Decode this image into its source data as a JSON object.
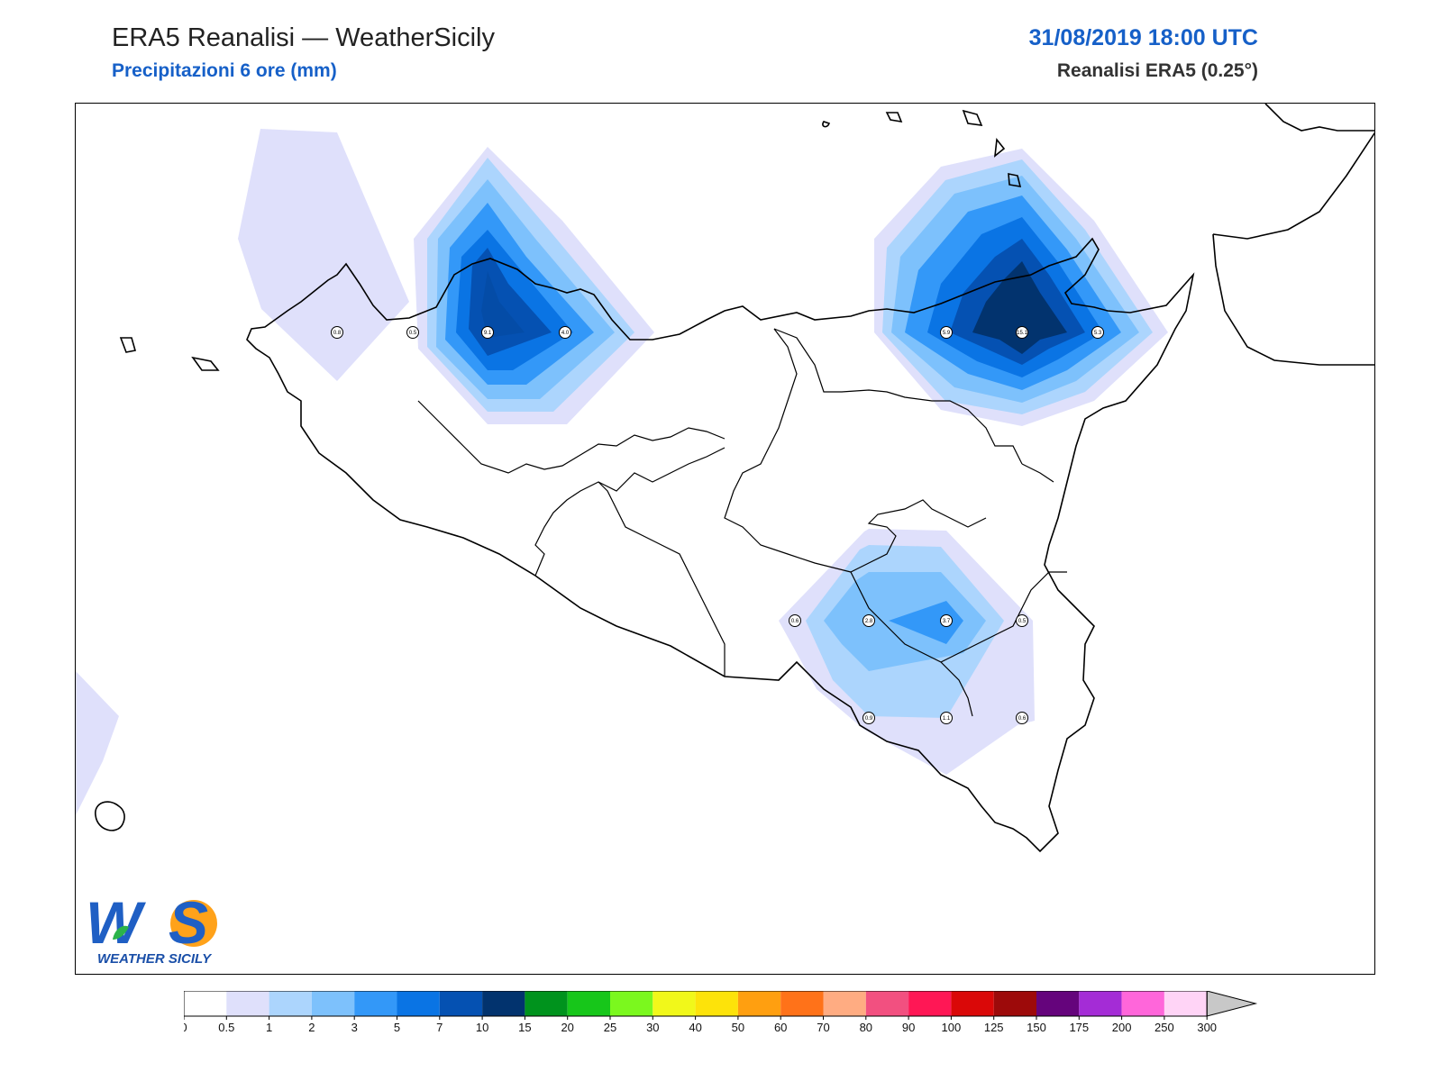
{
  "header": {
    "title": "ERA5 Reanalisi — WeatherSicily",
    "subtitle": "Precipitazioni 6 ore (mm)",
    "datetime": "31/08/2019 18:00 UTC",
    "model": "Reanalisi ERA5 (0.25°)"
  },
  "colors": {
    "title": "#222222",
    "accent_blue": "#1660c8",
    "coast": "#000000",
    "scale": [
      "#ffffff",
      "#dfe0fb",
      "#acd5fd",
      "#7dc1fc",
      "#3398f8",
      "#0a74e4",
      "#0551b2",
      "#02336e",
      "#00931d",
      "#17c61a",
      "#7bf81e",
      "#f1f81a",
      "#fde30a",
      "#ff9f10",
      "#ff7219",
      "#ffac82",
      "#f25080",
      "#ff1755",
      "#da0808",
      "#9d0a0a",
      "#65047c",
      "#a42cd6",
      "#ff66da",
      "#ffd4f6"
    ]
  },
  "legend": {
    "ticks": [
      "0",
      "0.5",
      "1",
      "2",
      "3",
      "5",
      "7",
      "10",
      "15",
      "20",
      "25",
      "30",
      "40",
      "50",
      "60",
      "70",
      "80",
      "90",
      "100",
      "125",
      "150",
      "175",
      "200",
      "250",
      "300"
    ],
    "extend_max_color": "#c8c8c8"
  },
  "grid_points": [
    {
      "id": "p1",
      "value": "0.8"
    },
    {
      "id": "p2",
      "value": "0.5"
    },
    {
      "id": "p3",
      "value": "9.1"
    },
    {
      "id": "p4",
      "value": "4.0"
    },
    {
      "id": "p5",
      "value": "5.9"
    },
    {
      "id": "p6",
      "value": "15.1"
    },
    {
      "id": "p7",
      "value": "5.3"
    },
    {
      "id": "p8",
      "value": "0.6"
    },
    {
      "id": "p9",
      "value": "2.8"
    },
    {
      "id": "p10",
      "value": "3.7"
    },
    {
      "id": "p11",
      "value": "0.5"
    },
    {
      "id": "p12",
      "value": "0.9"
    },
    {
      "id": "p13",
      "value": "1.1"
    },
    {
      "id": "p14",
      "value": "0.6"
    }
  ],
  "logo": {
    "letters": "WS",
    "text": "WEATHER SICILY"
  }
}
